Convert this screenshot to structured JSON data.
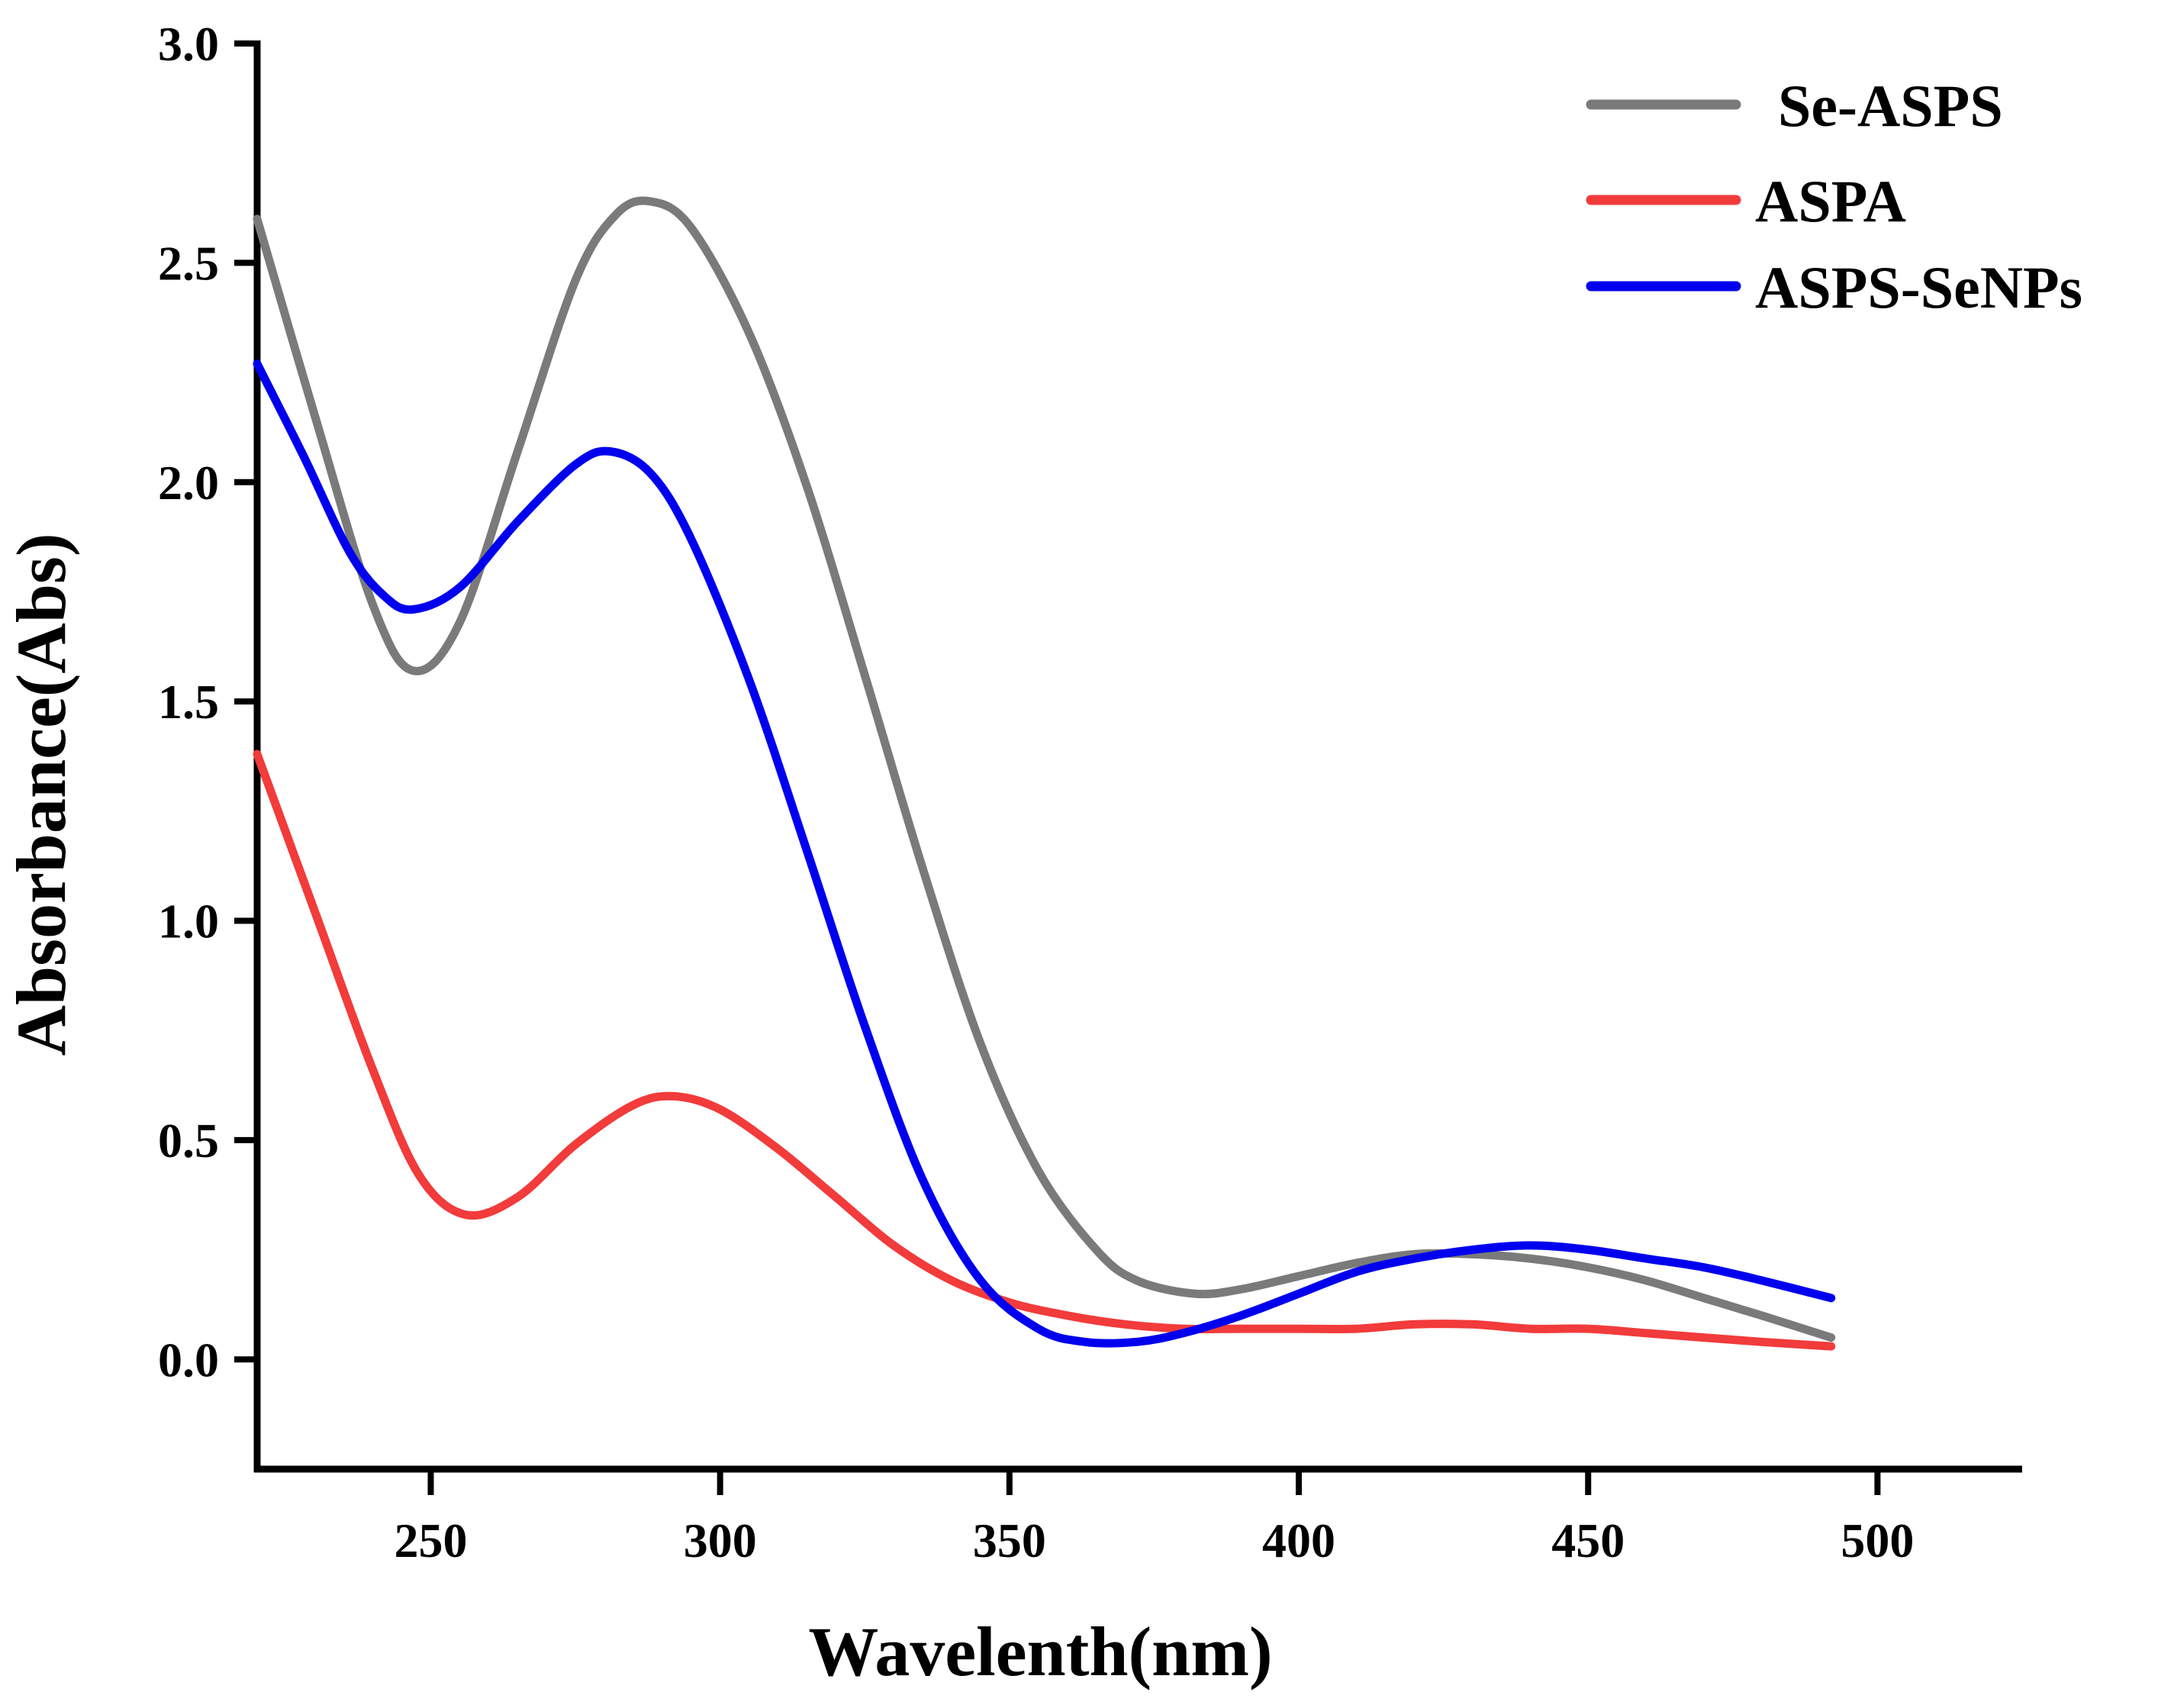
{
  "chart_data": {
    "type": "line",
    "title": "",
    "xlabel": "Wavelenth(nm)",
    "ylabel": "Absorbance(Abs)",
    "xlim": [
      220,
      525
    ],
    "ylim": [
      -0.25,
      3.0
    ],
    "xticks": [
      250,
      300,
      350,
      400,
      450,
      500
    ],
    "xtick_labels": [
      "250",
      "300",
      "350",
      "400",
      "450",
      "500"
    ],
    "yticks": [
      0.0,
      0.5,
      1.0,
      1.5,
      2.0,
      2.5,
      3.0
    ],
    "ytick_labels": [
      "0.0",
      "0.5",
      "1.0",
      "1.5",
      "2.0",
      "2.5",
      "3.0"
    ],
    "grid": false,
    "legend_position": "top-right",
    "series": [
      {
        "name": "Se-ASPS",
        "color": "#7a7a7a",
        "x": [
          220,
          230,
          240,
          247,
          255,
          265,
          275,
          282,
          288,
          295,
          305,
          315,
          325,
          335,
          345,
          355,
          365,
          372,
          382,
          390,
          400,
          410,
          420,
          430,
          440,
          450,
          460,
          470,
          480,
          492
        ],
        "y": [
          2.6,
          2.15,
          1.72,
          1.57,
          1.68,
          2.07,
          2.46,
          2.61,
          2.64,
          2.58,
          2.34,
          1.99,
          1.56,
          1.12,
          0.72,
          0.43,
          0.25,
          0.18,
          0.15,
          0.16,
          0.19,
          0.22,
          0.24,
          0.24,
          0.23,
          0.21,
          0.18,
          0.14,
          0.1,
          0.05
        ]
      },
      {
        "name": "ASPA",
        "color": "#f23b3b",
        "x": [
          220,
          230,
          240,
          248,
          256,
          265,
          275,
          285,
          292,
          300,
          310,
          320,
          330,
          340,
          350,
          360,
          370,
          380,
          390,
          400,
          410,
          420,
          430,
          440,
          450,
          460,
          470,
          480,
          492
        ],
        "y": [
          1.38,
          1.02,
          0.66,
          0.42,
          0.33,
          0.37,
          0.49,
          0.58,
          0.6,
          0.57,
          0.48,
          0.37,
          0.26,
          0.18,
          0.13,
          0.1,
          0.08,
          0.07,
          0.07,
          0.07,
          0.07,
          0.08,
          0.08,
          0.07,
          0.07,
          0.06,
          0.05,
          0.04,
          0.03
        ]
      },
      {
        "name": "ASPS-SeNPs",
        "color": "#0000ee",
        "x": [
          220,
          228,
          236,
          242,
          247,
          255,
          265,
          275,
          281,
          288,
          295,
          305,
          315,
          325,
          335,
          345,
          355,
          363,
          372,
          380,
          390,
          400,
          410,
          420,
          430,
          440,
          450,
          460,
          470,
          480,
          492
        ],
        "y": [
          2.27,
          2.06,
          1.84,
          1.74,
          1.71,
          1.76,
          1.91,
          2.04,
          2.07,
          2.02,
          1.87,
          1.55,
          1.16,
          0.76,
          0.41,
          0.18,
          0.07,
          0.04,
          0.04,
          0.06,
          0.1,
          0.15,
          0.2,
          0.23,
          0.25,
          0.26,
          0.25,
          0.23,
          0.21,
          0.18,
          0.14
        ]
      }
    ]
  }
}
